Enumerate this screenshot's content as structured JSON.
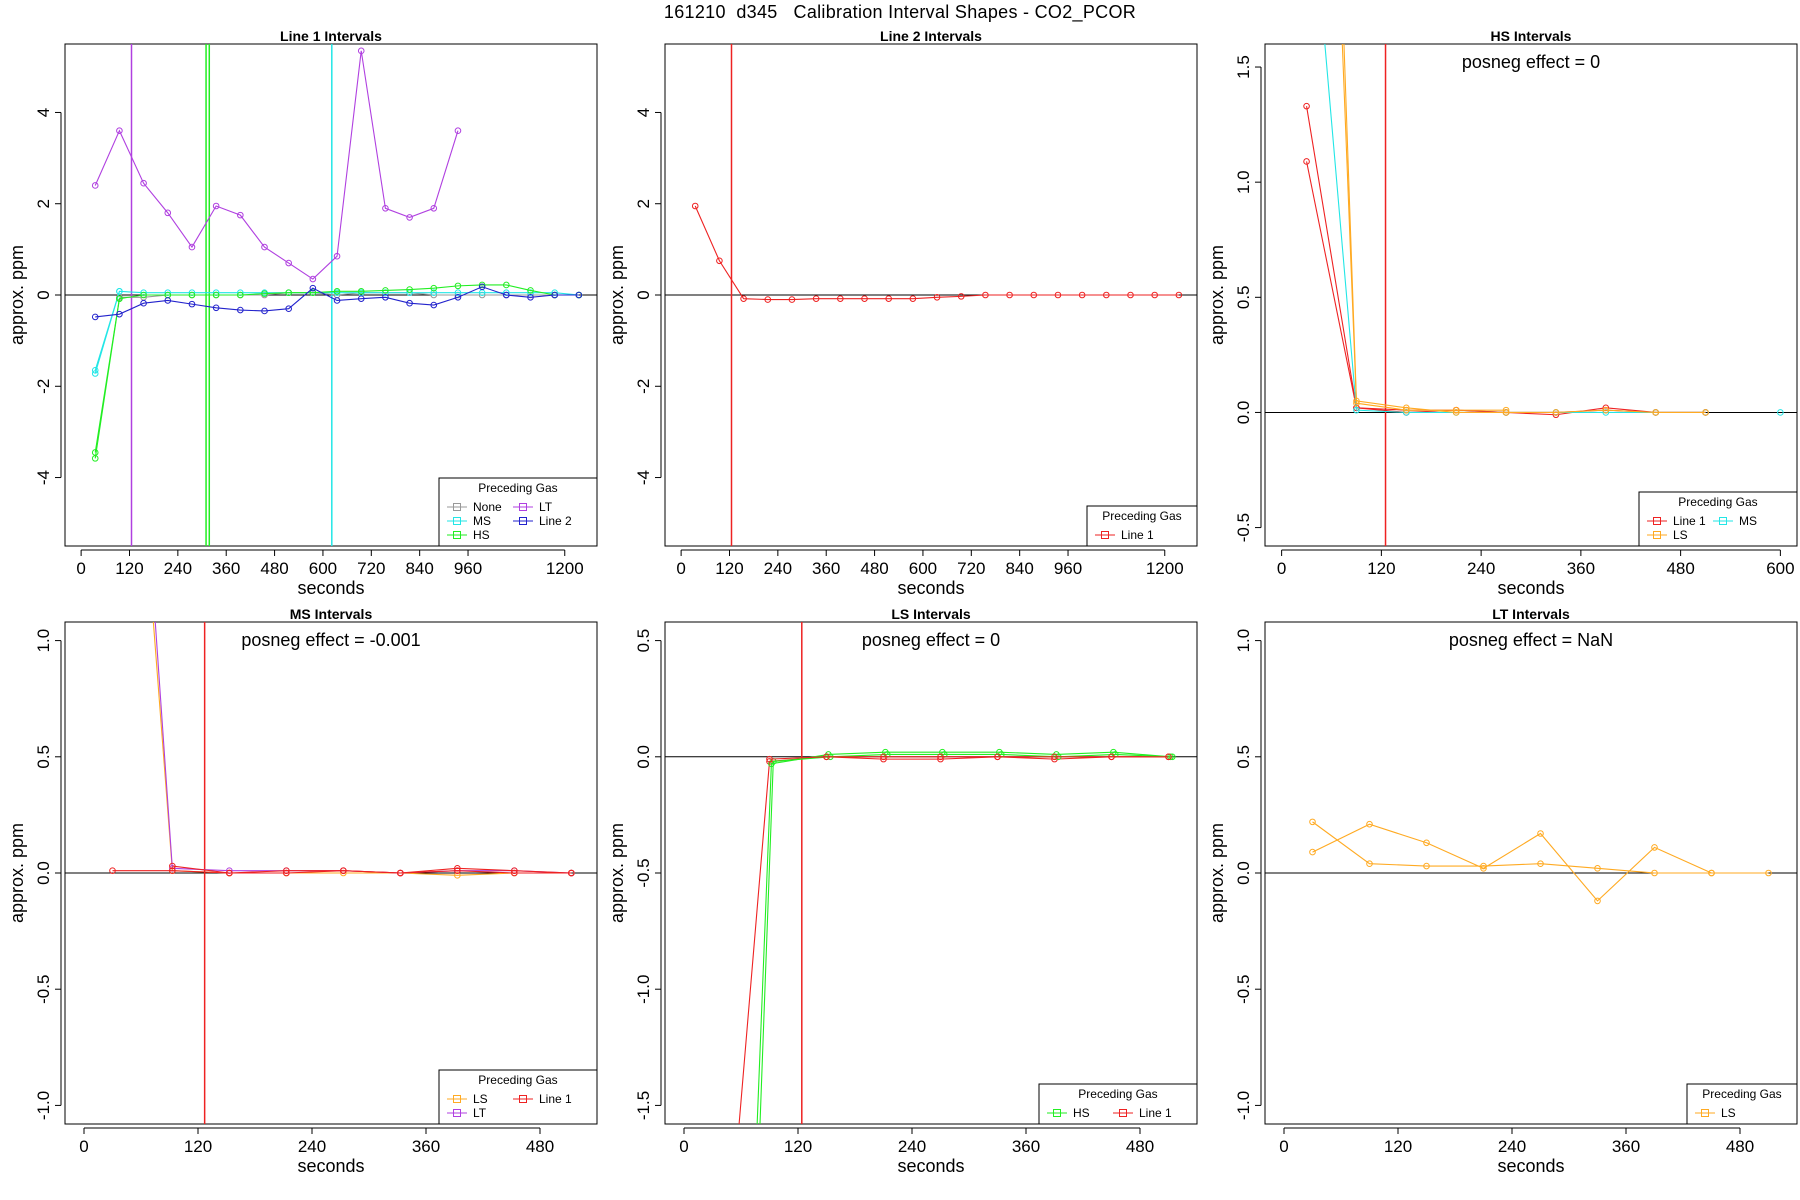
{
  "figure_title": "161210  d345   Calibration Interval Shapes - CO2_PCOR",
  "colors": {
    "None": "#999999",
    "MS": "#22e6e6",
    "HS": "#22ee22",
    "LT": "#b040e0",
    "Line 2": "#2222cc",
    "Line 1": "#ee2222",
    "LS": "#ffaa22",
    "black": "#000000"
  },
  "chart_data": [
    {
      "type": "line",
      "title": "Line 1 Intervals",
      "xlabel": "seconds",
      "ylabel": "approx. ppm",
      "xlim": [
        -40,
        1280
      ],
      "ylim": [
        -5.5,
        5.5
      ],
      "xticks": [
        0,
        120,
        240,
        360,
        480,
        600,
        720,
        840,
        960,
        1200
      ],
      "yticks": [
        -4,
        -2,
        0,
        2,
        4
      ],
      "annotation": "",
      "legend": {
        "title": "Preceding Gas",
        "position": "bottom-right",
        "columns": 2,
        "entries": [
          "None",
          "LT",
          "MS",
          "Line 2",
          "HS"
        ]
      },
      "vlines": [
        {
          "x": 125,
          "series": "LT"
        },
        {
          "x": 310,
          "series": "HS"
        },
        {
          "x": 318,
          "series": "HS"
        },
        {
          "x": 622,
          "series": "MS"
        }
      ],
      "series": [
        {
          "name": "None",
          "x": [
            95,
            155,
            215,
            275,
            335,
            395,
            455,
            515,
            575,
            635,
            695,
            755,
            815,
            875,
            935,
            995,
            1055,
            1115,
            1175,
            1235
          ],
          "y": [
            -0.05,
            -0.05,
            0,
            0,
            0,
            0,
            0,
            0.05,
            0.05,
            0,
            0.05,
            0.05,
            0.05,
            0,
            0,
            0,
            0,
            0,
            0,
            0
          ]
        },
        {
          "name": "MS",
          "x": [
            35,
            95,
            155,
            215,
            275,
            335,
            395,
            455,
            515,
            575,
            635,
            695,
            755,
            815,
            875,
            935,
            995,
            1055,
            1115,
            1175,
            1235
          ],
          "y": [
            -1.65,
            0.08,
            0.05,
            0.05,
            0.05,
            0.05,
            0.05,
            0.05,
            0.05,
            0.05,
            0.05,
            0.05,
            0.05,
            0.05,
            0.05,
            0.05,
            0.05,
            0.05,
            0.05,
            0.05,
            0
          ]
        },
        {
          "name": "MS",
          "x": [
            35,
            95
          ],
          "y": [
            -1.72,
            0.08
          ]
        },
        {
          "name": "HS",
          "x": [
            35,
            95,
            155,
            215,
            275,
            335,
            395,
            455,
            515,
            575,
            635,
            695,
            755,
            815,
            875,
            935,
            995,
            1055,
            1115,
            1175,
            1235
          ],
          "y": [
            -3.45,
            -0.08,
            0,
            0,
            0,
            0,
            0,
            0.03,
            0.05,
            0.05,
            0.08,
            0.08,
            0.1,
            0.12,
            0.15,
            0.2,
            0.22,
            0.22,
            0.1,
            0,
            0
          ]
        },
        {
          "name": "HS",
          "x": [
            35,
            95
          ],
          "y": [
            -3.58,
            -0.08
          ]
        },
        {
          "name": "LT",
          "x": [
            35,
            95,
            155,
            215,
            275,
            335,
            395,
            455,
            515,
            575,
            635,
            695,
            755,
            815,
            875,
            935
          ],
          "y": [
            2.4,
            3.6,
            2.45,
            1.8,
            1.05,
            1.95,
            1.75,
            1.05,
            0.7,
            0.35,
            0.85,
            5.35,
            1.9,
            1.7,
            1.9,
            3.6
          ]
        },
        {
          "name": "Line 2",
          "x": [
            35,
            95,
            155,
            215,
            275,
            335,
            395,
            455,
            515,
            575,
            635,
            695,
            755,
            815,
            875,
            935,
            995,
            1055,
            1115,
            1175,
            1235
          ],
          "y": [
            -0.48,
            -0.42,
            -0.18,
            -0.12,
            -0.2,
            -0.28,
            -0.33,
            -0.35,
            -0.3,
            0.15,
            -0.12,
            -0.08,
            -0.05,
            -0.18,
            -0.22,
            -0.05,
            0.18,
            0,
            -0.05,
            0,
            0
          ]
        }
      ]
    },
    {
      "type": "line",
      "title": "Line 2 Intervals",
      "xlabel": "seconds",
      "ylabel": "approx. ppm",
      "xlim": [
        -40,
        1280
      ],
      "ylim": [
        -5.5,
        5.5
      ],
      "xticks": [
        0,
        120,
        240,
        360,
        480,
        600,
        720,
        840,
        960,
        1200
      ],
      "yticks": [
        -4,
        -2,
        0,
        2,
        4
      ],
      "annotation": "",
      "legend": {
        "title": "Preceding Gas",
        "position": "bottom-right",
        "columns": 1,
        "entries": [
          "Line 1"
        ]
      },
      "vlines": [
        {
          "x": 125,
          "series": "Line 1"
        }
      ],
      "series": [
        {
          "name": "Line 1",
          "x": [
            35,
            95,
            155,
            215,
            275,
            335,
            395,
            455,
            515,
            575,
            635,
            695,
            755,
            815,
            875,
            935,
            995,
            1055,
            1115,
            1175,
            1235
          ],
          "y": [
            1.95,
            0.75,
            -0.08,
            -0.1,
            -0.1,
            -0.08,
            -0.08,
            -0.08,
            -0.08,
            -0.08,
            -0.05,
            -0.03,
            0,
            0,
            0,
            0,
            0,
            0,
            0,
            0,
            0
          ]
        }
      ]
    },
    {
      "type": "line",
      "title": "HS Intervals",
      "xlabel": "seconds",
      "ylabel": "approx. ppm",
      "xlim": [
        -20,
        620
      ],
      "ylim": [
        -0.58,
        1.6
      ],
      "xticks": [
        0,
        120,
        240,
        360,
        480,
        600
      ],
      "yticks": [
        -0.5,
        0.0,
        0.5,
        1.0,
        1.5
      ],
      "annotation": "posneg effect = 0",
      "legend": {
        "title": "Preceding Gas",
        "position": "bottom-right",
        "columns": 2,
        "entries": [
          "Line 1",
          "MS",
          "LS"
        ]
      },
      "vlines": [
        {
          "x": 125,
          "series": "Line 1"
        }
      ],
      "series": [
        {
          "name": "Line 1",
          "x": [
            30,
            90,
            150,
            210,
            270,
            330,
            390,
            450,
            510
          ],
          "y": [
            1.33,
            0.02,
            0.01,
            0.01,
            0,
            -0.01,
            0.02,
            0,
            0
          ]
        },
        {
          "name": "Line 1",
          "x": [
            30,
            90,
            150,
            210,
            270,
            330,
            390,
            450,
            510
          ],
          "y": [
            1.09,
            0.02,
            0,
            0.01,
            0,
            0,
            0.01,
            0,
            0
          ]
        },
        {
          "name": "MS",
          "x": [
            52,
            90,
            150,
            210,
            270,
            330,
            390,
            450,
            510
          ],
          "y": [
            1.6,
            0.01,
            0,
            0,
            0,
            0,
            0,
            0,
            0
          ]
        },
        {
          "name": "MS",
          "x": [
            600
          ],
          "y": [
            0
          ]
        },
        {
          "name": "LS",
          "x": [
            75,
            90,
            150,
            210,
            270,
            330,
            390,
            450,
            510
          ],
          "y": [
            1.6,
            0.05,
            0.02,
            0,
            0,
            0,
            0.01,
            0,
            0
          ]
        },
        {
          "name": "LS",
          "x": [
            73,
            90,
            150,
            210,
            270
          ],
          "y": [
            1.6,
            0.04,
            0.01,
            0.01,
            0.01
          ]
        }
      ]
    },
    {
      "type": "line",
      "title": "MS Intervals",
      "xlabel": "seconds",
      "ylabel": "approx. ppm",
      "xlim": [
        -20,
        540
      ],
      "ylim": [
        -1.08,
        1.08
      ],
      "xticks": [
        0,
        120,
        240,
        360,
        480
      ],
      "yticks": [
        -1.0,
        -0.5,
        0.0,
        0.5,
        1.0
      ],
      "annotation": "posneg effect = -0.001",
      "legend": {
        "title": "Preceding Gas",
        "position": "bottom-right",
        "columns": 2,
        "entries": [
          "LS",
          "Line 1",
          "LT"
        ]
      },
      "vlines": [
        {
          "x": 127,
          "series": "Line 1"
        }
      ],
      "series": [
        {
          "name": "LS",
          "x": [
            73,
            93,
            153,
            213,
            273,
            333,
            393,
            453,
            513
          ],
          "y": [
            1.08,
            0.01,
            0,
            0,
            0,
            0,
            -0.01,
            0,
            0
          ]
        },
        {
          "name": "LT",
          "x": [
            75,
            93,
            153,
            213,
            273,
            333,
            393,
            453,
            513
          ],
          "y": [
            1.08,
            0.02,
            0.01,
            0.01,
            0.01,
            0,
            0.01,
            0.01,
            0
          ]
        },
        {
          "name": "Line 1",
          "x": [
            30,
            93,
            153,
            213,
            273,
            333,
            393,
            453,
            513
          ],
          "y": [
            0.01,
            0.01,
            0,
            0,
            0.01,
            0,
            0.02,
            0.01,
            0
          ]
        },
        {
          "name": "Line 1",
          "x": [
            93,
            153,
            213,
            273,
            333,
            393,
            453,
            513
          ],
          "y": [
            0.03,
            0,
            0.01,
            0.01,
            0,
            0.01,
            0,
            0
          ]
        }
      ]
    },
    {
      "type": "line",
      "title": "LS Intervals",
      "xlabel": "seconds",
      "ylabel": "approx. ppm",
      "xlim": [
        -20,
        540
      ],
      "ylim": [
        -1.58,
        0.58
      ],
      "xticks": [
        0,
        120,
        240,
        360,
        480
      ],
      "yticks": [
        -1.5,
        -1.0,
        -0.5,
        0.0,
        0.5
      ],
      "annotation": "posneg effect = 0",
      "legend": {
        "title": "Preceding Gas",
        "position": "bottom-right",
        "columns": 2,
        "entries": [
          "HS",
          "Line 1"
        ]
      },
      "vlines": [
        {
          "x": 124,
          "series": "Line 1"
        }
      ],
      "series": [
        {
          "name": "Line 1",
          "x": [
            58,
            90,
            150,
            210,
            270,
            330,
            390,
            450,
            510
          ],
          "y": [
            -1.58,
            -0.02,
            0,
            -0.01,
            -0.01,
            0,
            -0.01,
            0,
            0
          ]
        },
        {
          "name": "HS",
          "x": [
            77,
            92,
            152,
            212,
            272,
            332,
            392,
            452,
            512
          ],
          "y": [
            -1.58,
            -0.03,
            0.01,
            0.02,
            0.02,
            0.02,
            0.01,
            0.02,
            0
          ]
        },
        {
          "name": "HS",
          "x": [
            80,
            94,
            154,
            214,
            274,
            334,
            394,
            454,
            514
          ],
          "y": [
            -1.58,
            -0.02,
            0,
            0.01,
            0.01,
            0.01,
            0,
            0.01,
            0
          ]
        },
        {
          "name": "Line 1",
          "x": [
            90,
            150,
            210,
            270,
            330,
            390,
            450,
            510
          ],
          "y": [
            -0.01,
            0,
            0,
            0,
            0,
            0,
            0,
            0
          ]
        }
      ]
    },
    {
      "type": "line",
      "title": "LT Intervals",
      "xlabel": "seconds",
      "ylabel": "approx. ppm",
      "xlim": [
        -20,
        540
      ],
      "ylim": [
        -1.08,
        1.08
      ],
      "xticks": [
        0,
        120,
        240,
        360,
        480
      ],
      "yticks": [
        -1.0,
        -0.5,
        0.0,
        0.5,
        1.0
      ],
      "annotation": "posneg effect = NaN",
      "legend": {
        "title": "Preceding Gas",
        "position": "bottom-right",
        "columns": 1,
        "entries": [
          "LS"
        ]
      },
      "vlines": [],
      "series": [
        {
          "name": "LS",
          "x": [
            30,
            90,
            150,
            210,
            270,
            330,
            390,
            450,
            510
          ],
          "y": [
            0.22,
            0.04,
            0.03,
            0.03,
            0.04,
            0.02,
            0,
            0,
            0
          ]
        },
        {
          "name": "LS",
          "x": [
            30,
            90,
            150,
            210,
            270,
            330,
            390,
            450
          ],
          "y": [
            0.09,
            0.21,
            0.13,
            0.02,
            0.17,
            -0.12,
            0.11,
            0
          ]
        }
      ]
    }
  ]
}
